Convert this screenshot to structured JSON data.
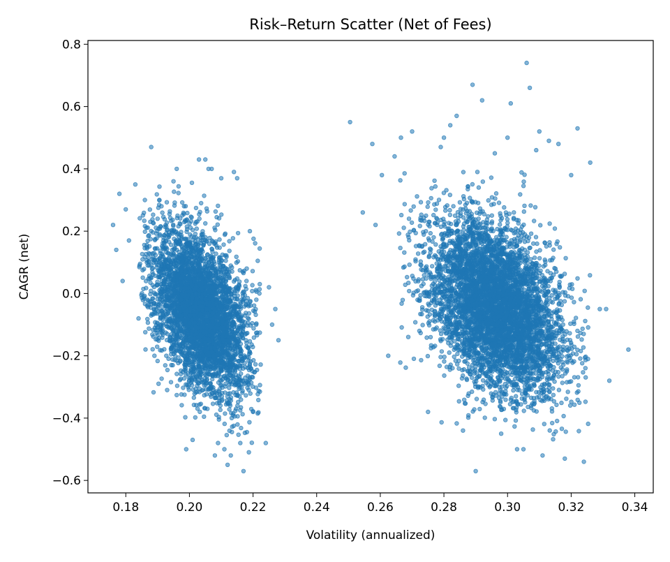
{
  "chart_data": {
    "type": "scatter",
    "title": "Risk–Return Scatter (Net of Fees)",
    "xlabel": "Volatility (annualized)",
    "ylabel": "CAGR (net)",
    "xlim": [
      0.1681,
      0.3458
    ],
    "ylim": [
      -0.64,
      0.812
    ],
    "xticks": [
      0.18,
      0.2,
      0.22,
      0.24,
      0.26,
      0.28,
      0.3,
      0.32,
      0.34
    ],
    "xtick_labels": [
      "0.18",
      "0.20",
      "0.22",
      "0.24",
      "0.26",
      "0.28",
      "0.30",
      "0.32",
      "0.34"
    ],
    "yticks": [
      -0.6,
      -0.4,
      -0.2,
      0.0,
      0.2,
      0.4,
      0.6,
      0.8
    ],
    "ytick_labels": [
      "−0.6",
      "−0.4",
      "−0.2",
      "0.0",
      "0.2",
      "0.4",
      "0.6",
      "0.8"
    ],
    "grid": false,
    "legend": "none",
    "marker_color": "#1f77b4",
    "marker_alpha": 0.55,
    "clusters": [
      {
        "approx_x_range": [
          0.185,
          0.222
        ],
        "approx_y_range": [
          -0.52,
          0.34
        ],
        "center": [
          0.203,
          -0.06
        ],
        "y_trend_vs_x": "negative"
      },
      {
        "approx_x_range": [
          0.265,
          0.325
        ],
        "approx_y_range": [
          -0.46,
          0.38
        ],
        "center": [
          0.296,
          -0.04
        ],
        "y_trend_vs_x": "negative"
      }
    ],
    "series": [
      {
        "x": [
          0.176,
          0.177,
          0.178,
          0.179,
          0.18,
          0.181,
          0.183,
          0.184,
          0.186,
          0.188,
          0.189,
          0.193,
          0.196,
          0.199,
          0.203,
          0.205,
          0.207,
          0.208,
          0.21,
          0.212,
          0.214,
          0.215,
          0.216,
          0.217,
          0.218,
          0.219,
          0.22,
          0.221,
          0.222,
          0.224,
          0.225,
          0.226,
          0.227,
          0.228,
          0.195,
          0.201,
          0.209,
          0.213,
          0.206,
          0.211,
          0.2505,
          0.2545,
          0.2575,
          0.2585,
          0.2605,
          0.2625,
          0.2645,
          0.2665,
          0.27,
          0.275,
          0.28,
          0.284,
          0.289,
          0.292,
          0.296,
          0.301,
          0.303,
          0.306,
          0.307,
          0.311,
          0.313,
          0.318,
          0.32,
          0.322,
          0.324,
          0.326,
          0.329,
          0.331,
          0.332,
          0.338,
          0.29,
          0.3,
          0.305,
          0.309,
          0.286,
          0.282,
          0.31,
          0.316,
          0.279,
          0.298
        ],
        "y": [
          0.22,
          0.14,
          0.32,
          0.04,
          0.27,
          0.17,
          0.35,
          -0.08,
          0.3,
          0.47,
          -0.2,
          -0.31,
          0.4,
          -0.5,
          0.43,
          0.43,
          0.4,
          -0.52,
          0.37,
          -0.55,
          0.39,
          0.37,
          -0.48,
          -0.57,
          0.08,
          0.2,
          -0.38,
          -0.1,
          0.0,
          -0.48,
          0.02,
          -0.1,
          -0.05,
          -0.15,
          0.36,
          -0.47,
          -0.48,
          -0.52,
          0.4,
          -0.5,
          0.55,
          0.26,
          0.48,
          0.22,
          0.38,
          -0.2,
          0.44,
          0.5,
          0.52,
          -0.38,
          0.5,
          0.57,
          0.67,
          0.62,
          0.45,
          0.61,
          -0.5,
          0.74,
          0.66,
          -0.52,
          0.49,
          -0.53,
          0.38,
          0.53,
          -0.54,
          0.42,
          -0.05,
          -0.05,
          -0.28,
          -0.18,
          -0.57,
          0.5,
          -0.5,
          0.46,
          -0.44,
          0.54,
          0.52,
          0.48,
          0.47,
          -0.45
        ]
      }
    ]
  }
}
